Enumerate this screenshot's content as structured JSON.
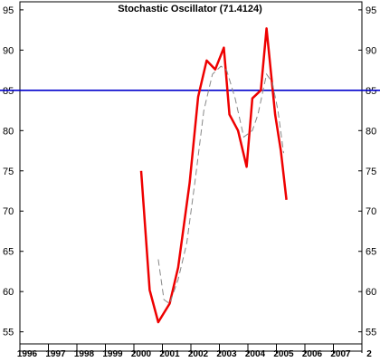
{
  "chart_data": {
    "type": "line",
    "title": "Stochastic Oscillator (71.4124)",
    "xlabel": "",
    "ylabel": "",
    "xlim": [
      1996,
      2008
    ],
    "ylim": [
      53.5,
      96
    ],
    "x_ticks": [
      "1996",
      "1997",
      "1998",
      "1999",
      "2000",
      "2001",
      "2002",
      "2003",
      "2004",
      "2005",
      "2006",
      "2007",
      "2"
    ],
    "y_ticks": [
      55,
      60,
      65,
      70,
      75,
      80,
      85,
      90,
      95
    ],
    "reference_line": {
      "value": 85,
      "color": "#0000cc"
    },
    "grid": false,
    "legend": "none",
    "series": [
      {
        "style": "solid",
        "color": "#ee0000",
        "x": [
          2000.0,
          2000.3,
          2000.6,
          2001.0,
          2001.3,
          2001.7,
          2002.0,
          2002.3,
          2002.6,
          2002.9,
          2003.1,
          2003.4,
          2003.7,
          2003.9,
          2004.2,
          2004.4,
          2004.7,
          2004.9,
          2005.1
        ],
        "values": [
          75.0,
          60.2,
          56.2,
          58.5,
          63.0,
          73.5,
          84.2,
          88.7,
          87.6,
          90.3,
          82.0,
          80.0,
          75.5,
          84.0,
          85.0,
          92.7,
          82.0,
          77.5,
          71.4
        ]
      },
      {
        "style": "dashed",
        "color": "#888888",
        "x": [
          2000.6,
          2000.8,
          2001.0,
          2001.3,
          2001.6,
          2001.9,
          2002.2,
          2002.5,
          2002.8,
          2003.0,
          2003.3,
          2003.6,
          2003.9,
          2004.1,
          2004.4,
          2004.6,
          2004.8,
          2005.0
        ],
        "values": [
          64.0,
          59.0,
          58.5,
          61.5,
          66.0,
          74.0,
          82.5,
          87.0,
          88.0,
          87.5,
          84.0,
          79.2,
          80.0,
          82.0,
          87.0,
          86.0,
          82.5,
          77.2
        ]
      }
    ]
  }
}
